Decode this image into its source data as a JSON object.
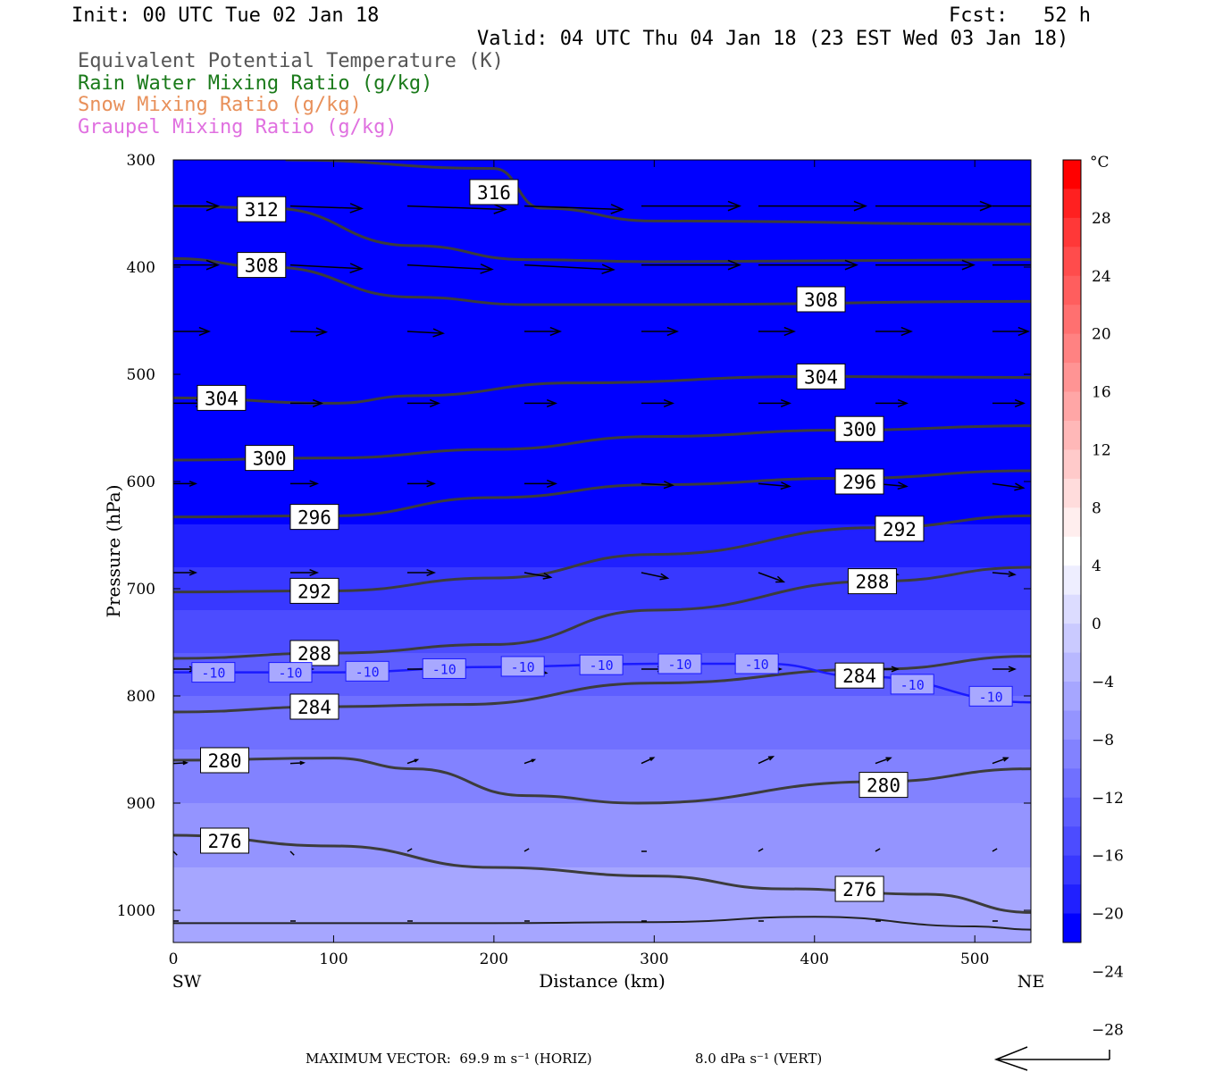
{
  "header": {
    "init": "Init: 00 UTC Tue 02 Jan 18",
    "fcst": "Fcst:   52 h",
    "valid": "Valid: 04 UTC Thu 04 Jan 18 (23 EST Wed 03 Jan 18)",
    "legend": [
      {
        "text": "Equivalent Potential Temperature (K)",
        "color": "#555555"
      },
      {
        "text": "Rain Water Mixing Ratio (g/kg)",
        "color": "#1a7a1a"
      },
      {
        "text": "Snow Mixing Ratio (g/kg)",
        "color": "#e8905a"
      },
      {
        "text": "Graupel Mixing Ratio (g/kg)",
        "color": "#e070e0"
      }
    ]
  },
  "chart_data": {
    "type": "cross-section",
    "xlabel": "Distance (km)",
    "ylabel": "Pressure (hPa)",
    "xlim": [
      0,
      535
    ],
    "ylim": [
      300,
      1030
    ],
    "x_ticks": [
      0,
      100,
      200,
      300,
      400,
      500
    ],
    "y_ticks": [
      300,
      400,
      500,
      600,
      700,
      800,
      900,
      1000
    ],
    "left_end": "SW",
    "right_end": "NE",
    "colorbar": {
      "unit": "°C",
      "labels": [
        28,
        24,
        20,
        16,
        12,
        8,
        4,
        0,
        -4,
        -8,
        -12,
        -16,
        -20,
        -24,
        -28
      ],
      "levels": [
        32,
        30,
        28,
        26,
        24,
        22,
        20,
        18,
        16,
        14,
        12,
        10,
        8,
        6,
        4,
        2,
        0,
        -2,
        -4,
        -6,
        -8,
        -10,
        -12,
        -14,
        -16,
        -18,
        -20,
        -22,
        -24,
        -26,
        -28,
        -30,
        -32
      ],
      "colors": [
        "#ff0000",
        "#ff2020",
        "#ff3838",
        "#ff4c4c",
        "#ff5e5e",
        "#ff7070",
        "#ff8282",
        "#ff9494",
        "#ffa6a6",
        "#ffb8b8",
        "#ffcaca",
        "#ffdcdc",
        "#ffeeee",
        "#ffffff",
        "#eeeeff",
        "#dcdcff",
        "#cacaff",
        "#b8b8ff",
        "#a6a6ff",
        "#9494ff",
        "#8282ff",
        "#7070ff",
        "#5e5eff",
        "#4c4cff",
        "#3838ff",
        "#2020ff",
        "#0000ff"
      ]
    },
    "temperature_bands": [
      {
        "p": [
          300,
          360
        ],
        "temp": -32
      },
      {
        "p": [
          360,
          440
        ],
        "temp": -31
      },
      {
        "p": [
          440,
          480
        ],
        "temp": -28
      },
      {
        "p": [
          480,
          520
        ],
        "temp": -26
      },
      {
        "p": [
          520,
          560
        ],
        "temp": -24
      },
      {
        "p": [
          560,
          600
        ],
        "temp": -22
      },
      {
        "p": [
          600,
          640
        ],
        "temp": -20
      },
      {
        "p": [
          640,
          680
        ],
        "temp": -18
      },
      {
        "p": [
          680,
          720
        ],
        "temp": -16
      },
      {
        "p": [
          720,
          760
        ],
        "temp": -14
      },
      {
        "p": [
          760,
          800
        ],
        "temp": -12
      },
      {
        "p": [
          800,
          850
        ],
        "temp": -10
      },
      {
        "p": [
          850,
          900
        ],
        "temp": -8
      },
      {
        "p": [
          900,
          960
        ],
        "temp": -6
      },
      {
        "p": [
          960,
          1030
        ],
        "temp": -5
      }
    ],
    "theta_e_contours": [
      {
        "level": 316,
        "x": [
          70,
          200,
          230,
          300,
          535
        ],
        "p": [
          300,
          308,
          345,
          357,
          360
        ],
        "label": [
          185,
          330
        ]
      },
      {
        "level": 312,
        "x": [
          0,
          60,
          150,
          220,
          300,
          535
        ],
        "p": [
          343,
          345,
          380,
          393,
          395,
          393
        ],
        "label": [
          40,
          346
        ]
      },
      {
        "level": 308,
        "x": [
          0,
          60,
          150,
          220,
          300,
          535
        ],
        "p": [
          392,
          400,
          428,
          435,
          435,
          432
        ],
        "label": [
          40,
          398
        ]
      },
      {
        "level": 308,
        "x": [
          0,
          535
        ],
        "p": [
          420,
          420
        ],
        "label": [
          389,
          430
        ],
        "hidden": true
      },
      {
        "level": 304,
        "x": [
          0,
          100,
          150,
          250,
          400,
          535
        ],
        "p": [
          522,
          527,
          520,
          508,
          502,
          503
        ],
        "label": [
          15,
          522
        ]
      },
      {
        "level": 304,
        "x": [
          0,
          535
        ],
        "p": [
          500,
          500
        ],
        "label": [
          389,
          502
        ],
        "hidden": true
      },
      {
        "level": 300,
        "x": [
          0,
          100,
          200,
          300,
          420,
          535
        ],
        "p": [
          580,
          578,
          570,
          558,
          552,
          548
        ],
        "label": [
          45,
          578
        ],
        "label2": [
          413,
          551
        ]
      },
      {
        "level": 296,
        "x": [
          0,
          100,
          200,
          300,
          420,
          535
        ],
        "p": [
          633,
          632,
          615,
          603,
          597,
          590
        ],
        "label": [
          73,
          633
        ],
        "label2": [
          413,
          600
        ]
      },
      {
        "level": 292,
        "x": [
          0,
          100,
          200,
          300,
          440,
          535
        ],
        "p": [
          703,
          702,
          690,
          668,
          643,
          632
        ],
        "label": [
          73,
          702
        ],
        "label2": [
          438,
          644
        ]
      },
      {
        "level": 288,
        "x": [
          0,
          100,
          200,
          300,
          440,
          535
        ],
        "p": [
          765,
          760,
          752,
          720,
          693,
          680
        ],
        "label": [
          73,
          760
        ],
        "label2": [
          421,
          693
        ]
      },
      {
        "level": 284,
        "x": [
          0,
          100,
          180,
          300,
          440,
          535
        ],
        "p": [
          815,
          810,
          808,
          788,
          775,
          763
        ],
        "label": [
          73,
          810
        ],
        "label2": [
          413,
          781
        ]
      },
      {
        "level": 280,
        "x": [
          0,
          100,
          150,
          220,
          290,
          440,
          535
        ],
        "p": [
          860,
          858,
          868,
          893,
          900,
          880,
          868
        ],
        "label": [
          17,
          860
        ],
        "label2": [
          428,
          883
        ]
      },
      {
        "level": 276,
        "x": [
          0,
          100,
          200,
          300,
          380,
          470,
          535
        ],
        "p": [
          930,
          940,
          960,
          968,
          980,
          985,
          1002
        ],
        "label": [
          17,
          935
        ],
        "label2": [
          413,
          980
        ]
      }
    ],
    "isotherm_minus10": {
      "color": "#1a1aff",
      "label": "-10",
      "x": [
        0,
        100,
        200,
        300,
        370,
        430,
        535
      ],
      "p": [
        778,
        778,
        773,
        770,
        770,
        782,
        806
      ],
      "label_x": [
        25,
        73,
        121,
        169,
        218,
        267,
        316,
        364,
        461,
        510
      ]
    },
    "surface": {
      "x": [
        0,
        200,
        300,
        400,
        500,
        535
      ],
      "p": [
        1012,
        1012,
        1011,
        1006,
        1015,
        1018
      ]
    },
    "wind_vectors": {
      "rows_p": [
        343,
        398,
        460,
        527,
        602,
        685,
        775,
        863,
        945,
        1010
      ],
      "cols_x": [
        0,
        73,
        146,
        219,
        292,
        365,
        438,
        511
      ],
      "lengths_px": [
        [
          50,
          80,
          110,
          110,
          110,
          120,
          130,
          95
        ],
        [
          50,
          80,
          95,
          100,
          110,
          110,
          110,
          80
        ],
        [
          40,
          40,
          40,
          40,
          40,
          40,
          40,
          40
        ],
        [
          35,
          35,
          35,
          35,
          35,
          35,
          35,
          35
        ],
        [
          25,
          30,
          30,
          35,
          35,
          35,
          35,
          35
        ],
        [
          25,
          30,
          30,
          30,
          30,
          30,
          25,
          25
        ],
        [
          25,
          25,
          25,
          25,
          25,
          25,
          25,
          25
        ],
        [
          15,
          15,
          12,
          12,
          15,
          18,
          18,
          18
        ],
        [
          6,
          6,
          6,
          6,
          6,
          6,
          6,
          6
        ],
        [
          6,
          6,
          6,
          6,
          6,
          6,
          6,
          6
        ]
      ],
      "tilts_deg": [
        [
          0,
          2,
          2,
          2,
          0,
          0,
          0,
          0
        ],
        [
          0,
          3,
          3,
          3,
          0,
          0,
          0,
          0
        ],
        [
          0,
          1,
          3,
          0,
          0,
          0,
          0,
          0
        ],
        [
          0,
          0,
          0,
          0,
          0,
          0,
          0,
          0
        ],
        [
          0,
          0,
          0,
          0,
          3,
          5,
          5,
          8
        ],
        [
          0,
          0,
          0,
          10,
          12,
          20,
          5,
          5
        ],
        [
          0,
          0,
          0,
          10,
          0,
          0,
          0,
          0
        ],
        [
          -3,
          -3,
          -20,
          -20,
          -25,
          -25,
          -20,
          -20
        ],
        [
          45,
          45,
          -30,
          -30,
          0,
          -30,
          -30,
          -30
        ],
        [
          0,
          0,
          0,
          0,
          0,
          0,
          0,
          0
        ]
      ]
    }
  },
  "footer": {
    "max_vector": "MAXIMUM VECTOR:  69.9 m s⁻¹ (HORIZ)",
    "vert": "8.0 dPa s⁻¹ (VERT)"
  }
}
